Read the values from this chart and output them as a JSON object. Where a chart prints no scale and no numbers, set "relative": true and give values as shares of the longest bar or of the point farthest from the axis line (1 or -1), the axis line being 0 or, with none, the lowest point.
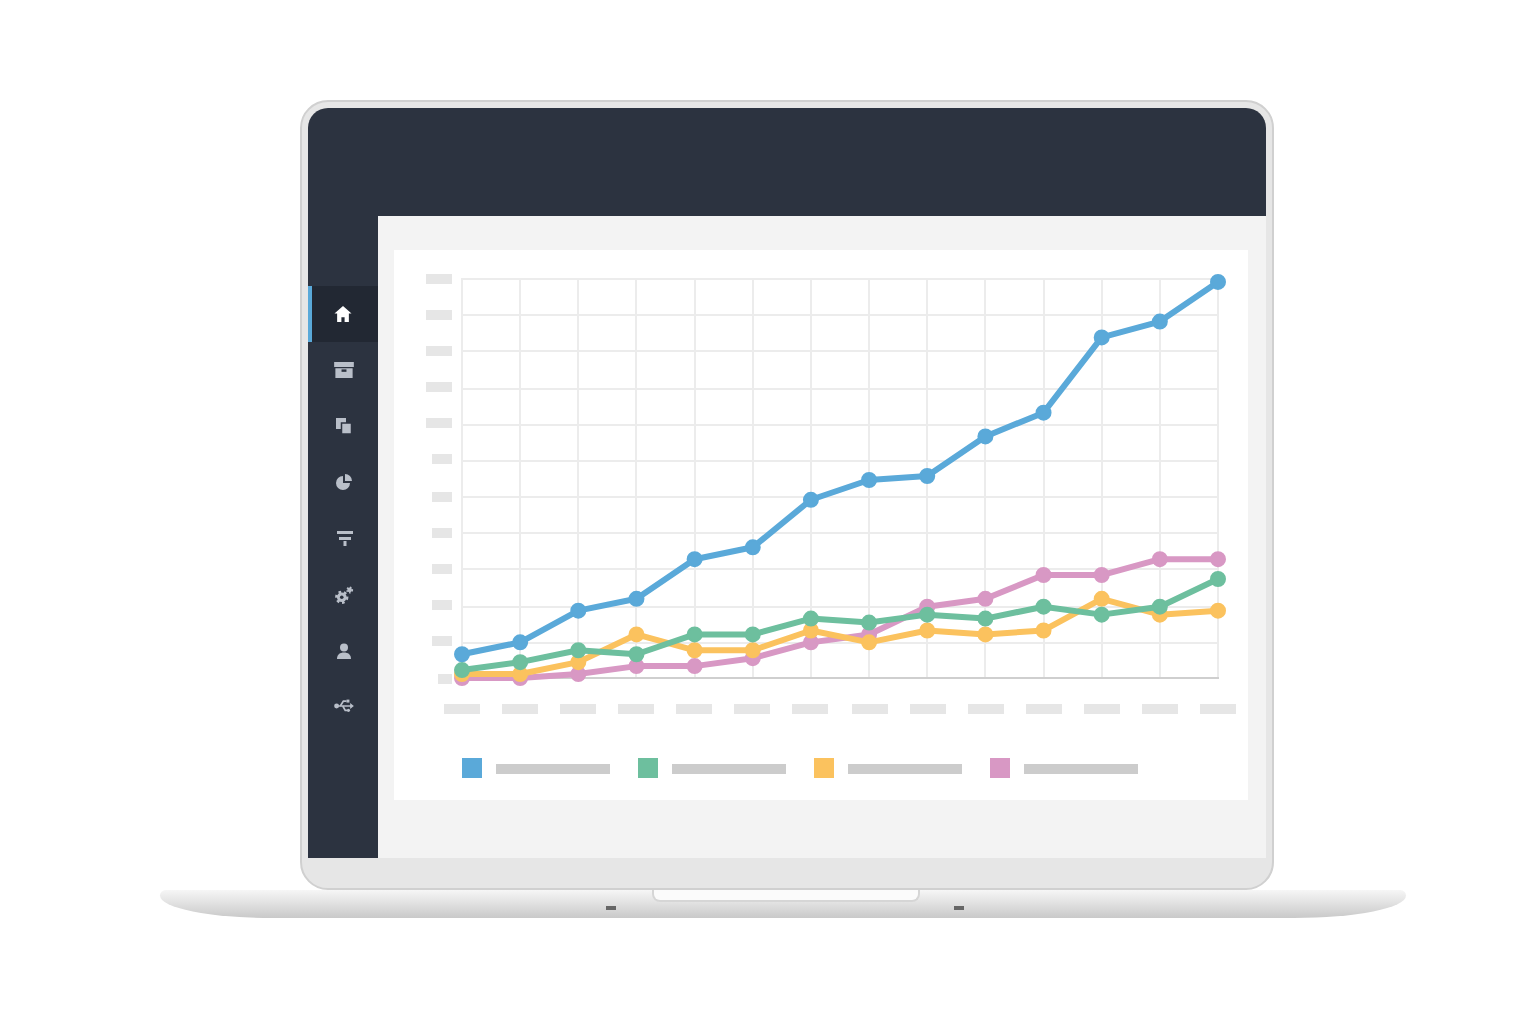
{
  "chart_data": {
    "type": "line",
    "relative": true,
    "categories": [
      null,
      null,
      null,
      null,
      null,
      null,
      null,
      null,
      null,
      null,
      null,
      null,
      null,
      null
    ],
    "series": [
      {
        "color": "#5aa9d9",
        "values": [
          0.06,
          0.09,
          0.17,
          0.2,
          0.3,
          0.33,
          0.45,
          0.5,
          0.51,
          0.61,
          0.67,
          0.86,
          0.9,
          1
        ]
      },
      {
        "color": "#6dbf9e",
        "values": [
          0.02,
          0.04,
          0.07,
          0.06,
          0.11,
          0.11,
          0.15,
          0.14,
          0.16,
          0.15,
          0.18,
          0.16,
          0.18,
          0.25
        ]
      },
      {
        "color": "#fbc25e",
        "values": [
          0.01,
          0.01,
          0.04,
          0.11,
          0.07,
          0.07,
          0.12,
          0.09,
          0.12,
          0.11,
          0.12,
          0.2,
          0.16,
          0.17
        ]
      },
      {
        "color": "#d898c4",
        "values": [
          0,
          0,
          0.01,
          0.03,
          0.03,
          0.05,
          0.09,
          0.11,
          0.18,
          0.2,
          0.26,
          0.26,
          0.3,
          0.3
        ]
      }
    ],
    "grid": true,
    "marker": "circle"
  }
}
